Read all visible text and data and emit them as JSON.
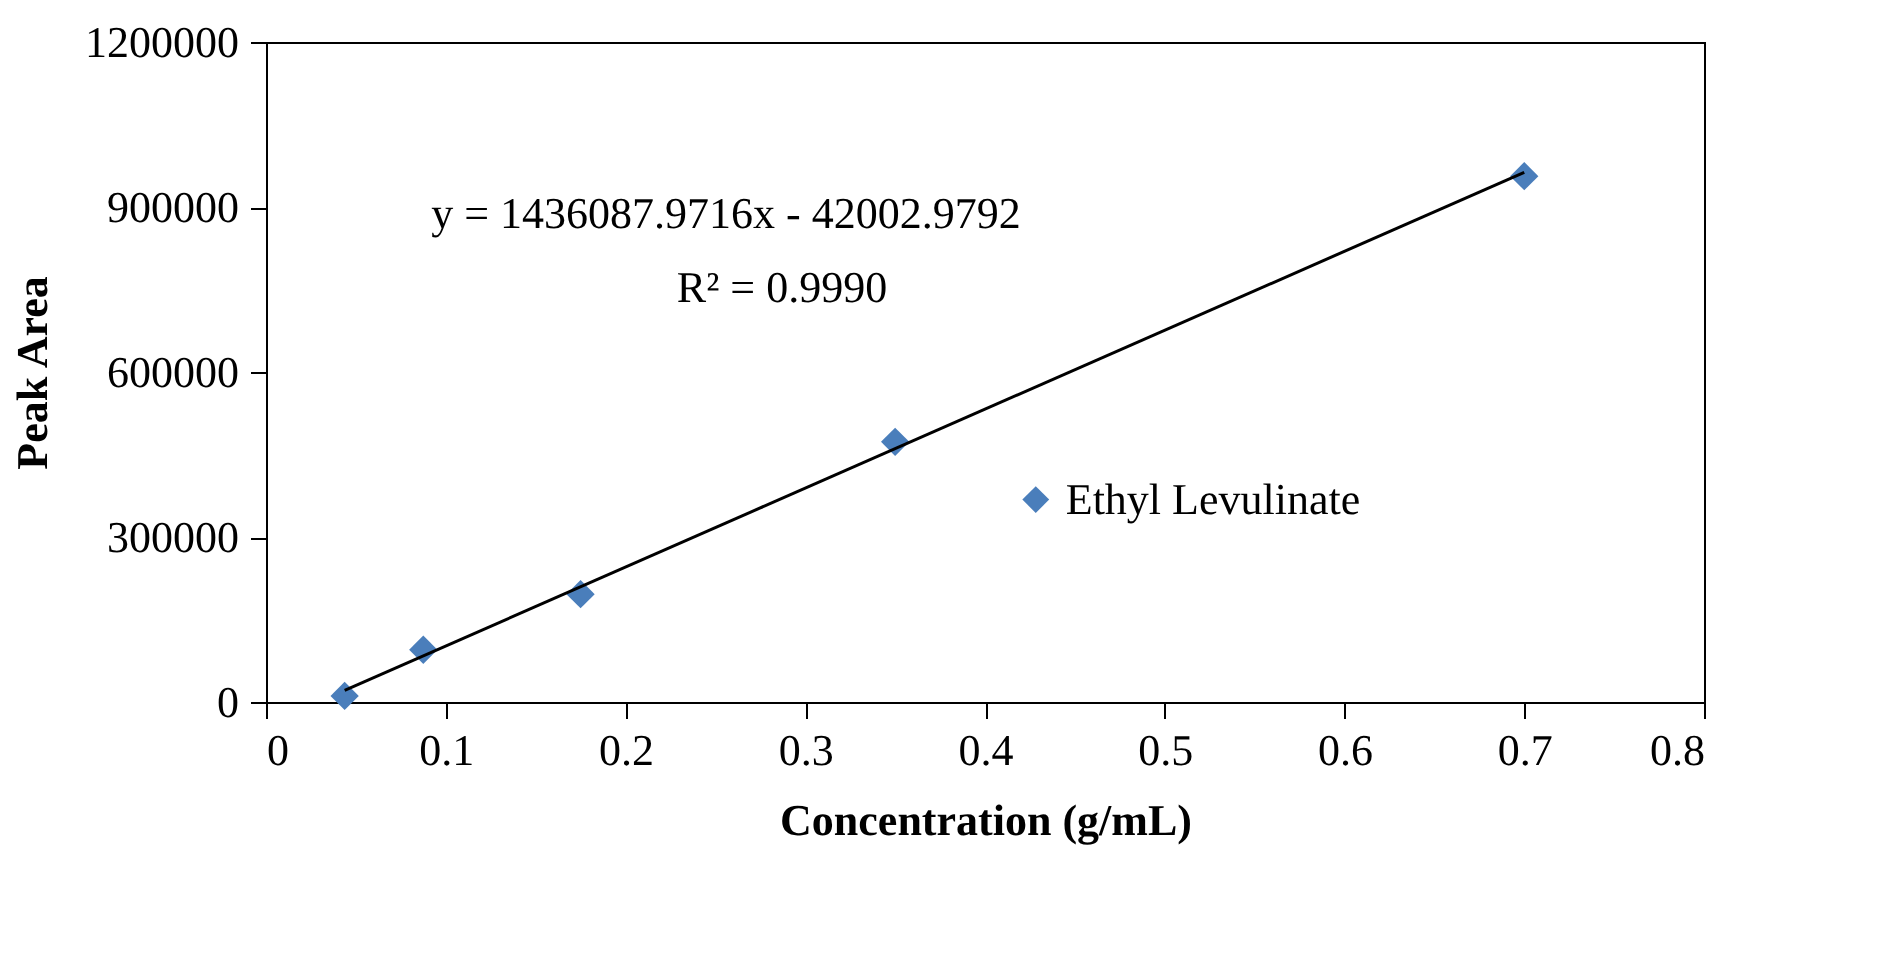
{
  "chart_data": {
    "type": "scatter",
    "xlabel": "Concentration (g/mL)",
    "ylabel": "Peak Area",
    "xlim": [
      0,
      0.8
    ],
    "xticks": [
      0,
      0.1,
      0.2,
      0.3,
      0.4,
      0.5,
      0.6,
      0.7,
      0.8
    ],
    "ylim": [
      0,
      1200000
    ],
    "yticks": [
      0,
      300000,
      600000,
      900000,
      1200000
    ],
    "grid": false,
    "legend": "right",
    "annotations": [
      "y = 1436087.9716x - 42002.9792",
      "R² = 0.9990"
    ],
    "series": [
      {
        "name": "Ethyl Levulinate",
        "marker": "diamond",
        "color": "#4a7ebb",
        "x": [
          0.04375,
          0.0875,
          0.175,
          0.35,
          0.7
        ],
        "values": [
          11000,
          95000,
          196000,
          473000,
          956000
        ]
      },
      {
        "type": "line",
        "marker": "none",
        "line_style": "solid",
        "color": "#000000",
        "x": [
          0.04375,
          0.7
        ],
        "values": [
          21000,
          963000
        ]
      }
    ]
  }
}
